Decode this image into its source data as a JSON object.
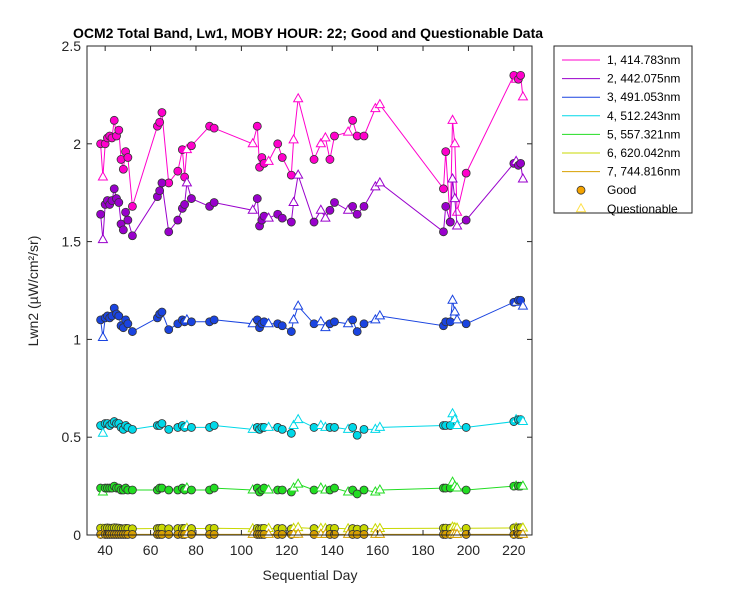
{
  "chart_data": {
    "type": "line",
    "title": "OCM2 Total Band, Lw1, MOBY HOUR: 22;  Good and Questionable Data",
    "xlabel": "Sequential Day",
    "ylabel": "Lwn2 (µW/cm²/sr)",
    "xlim": [
      32,
      228
    ],
    "ylim": [
      0,
      2.5
    ],
    "xticks": [
      40,
      60,
      80,
      100,
      120,
      140,
      160,
      180,
      200,
      220
    ],
    "xtick_labels": [
      "40",
      "60",
      "80",
      "100",
      "120",
      "140",
      "160",
      "180",
      "200",
      "220"
    ],
    "yticks": [
      0,
      0.5,
      1,
      1.5,
      2,
      2.5
    ],
    "ytick_labels": [
      "0",
      "0.5",
      "1",
      "1.5",
      "2",
      "2.5"
    ],
    "grid": false,
    "legend_position": "outside-top-right",
    "x": [
      38,
      39,
      40,
      41,
      42,
      43,
      44,
      45,
      46,
      47,
      48,
      49,
      50,
      52,
      63,
      64,
      65,
      68,
      72,
      74,
      75,
      76,
      78,
      86,
      88,
      105,
      107,
      108,
      109,
      110,
      112,
      116,
      118,
      122,
      123,
      125,
      132,
      135,
      137,
      139,
      141,
      147,
      149,
      151,
      154,
      159,
      161,
      189,
      190,
      192,
      193,
      194,
      195,
      199,
      220,
      221,
      222,
      223,
      224
    ],
    "quality": [
      "G",
      "Q",
      "G",
      "G",
      "G",
      "G",
      "G",
      "G",
      "G",
      "G",
      "G",
      "G",
      "G",
      "G",
      "G",
      "G",
      "G",
      "G",
      "G",
      "G",
      "G",
      "Q",
      "G",
      "G",
      "G",
      "Q",
      "G",
      "G",
      "G",
      "G",
      "Q",
      "G",
      "G",
      "G",
      "Q",
      "Q",
      "G",
      "Q",
      "Q",
      "G",
      "G",
      "Q",
      "G",
      "G",
      "G",
      "Q",
      "Q",
      "G",
      "G",
      "G",
      "Q",
      "Q",
      "Q",
      "G",
      "G",
      "Q",
      "G",
      "G",
      "Q"
    ],
    "series": [
      {
        "name": "1, 414.783nm",
        "color": "#ff00cc",
        "values": [
          2.0,
          1.83,
          2.0,
          2.03,
          2.04,
          2.03,
          2.12,
          2.04,
          2.07,
          1.92,
          1.87,
          1.96,
          1.93,
          1.68,
          2.09,
          2.11,
          2.16,
          1.8,
          1.86,
          1.97,
          1.83,
          1.97,
          1.99,
          2.09,
          2.08,
          2.0,
          2.09,
          1.88,
          1.93,
          1.9,
          1.91,
          2.0,
          1.93,
          1.84,
          2.02,
          2.23,
          1.92,
          2.0,
          2.03,
          1.92,
          2.04,
          2.06,
          2.12,
          2.04,
          2.04,
          2.18,
          2.2,
          1.77,
          1.96,
          1.6,
          2.12,
          2.0,
          1.65,
          1.85,
          2.35,
          2.33,
          2.33,
          2.35,
          2.24
        ]
      },
      {
        "name": "2, 442.075nm",
        "color": "#9900cc",
        "values": [
          1.64,
          1.51,
          1.69,
          1.71,
          1.69,
          1.71,
          1.77,
          1.72,
          1.7,
          1.59,
          1.56,
          1.65,
          1.61,
          1.53,
          1.73,
          1.76,
          1.8,
          1.55,
          1.61,
          1.67,
          1.69,
          1.8,
          1.72,
          1.68,
          1.7,
          1.66,
          1.72,
          1.58,
          1.61,
          1.63,
          1.62,
          1.64,
          1.62,
          1.6,
          1.7,
          1.84,
          1.6,
          1.66,
          1.62,
          1.66,
          1.7,
          1.66,
          1.68,
          1.64,
          1.68,
          1.78,
          1.8,
          1.55,
          1.68,
          1.6,
          1.82,
          1.72,
          1.58,
          1.61,
          1.9,
          1.91,
          1.89,
          1.9,
          1.82
        ]
      },
      {
        "name": "3, 491.053nm",
        "color": "#1a44e0",
        "values": [
          1.1,
          1.01,
          1.11,
          1.12,
          1.11,
          1.12,
          1.16,
          1.13,
          1.12,
          1.07,
          1.06,
          1.1,
          1.08,
          1.04,
          1.11,
          1.13,
          1.14,
          1.05,
          1.08,
          1.1,
          1.09,
          1.1,
          1.09,
          1.09,
          1.1,
          1.08,
          1.1,
          1.06,
          1.08,
          1.09,
          1.08,
          1.08,
          1.07,
          1.04,
          1.1,
          1.17,
          1.08,
          1.09,
          1.06,
          1.08,
          1.09,
          1.08,
          1.1,
          1.04,
          1.08,
          1.1,
          1.12,
          1.07,
          1.09,
          1.09,
          1.2,
          1.14,
          1.1,
          1.08,
          1.19,
          1.19,
          1.2,
          1.2,
          1.17
        ]
      },
      {
        "name": "4, 512.243nm",
        "color": "#00d8e8",
        "values": [
          0.56,
          0.52,
          0.57,
          0.57,
          0.56,
          0.57,
          0.58,
          0.57,
          0.57,
          0.55,
          0.54,
          0.56,
          0.55,
          0.54,
          0.56,
          0.56,
          0.57,
          0.54,
          0.55,
          0.56,
          0.55,
          0.56,
          0.55,
          0.55,
          0.56,
          0.54,
          0.55,
          0.54,
          0.55,
          0.55,
          0.55,
          0.55,
          0.54,
          0.52,
          0.56,
          0.59,
          0.55,
          0.56,
          0.55,
          0.55,
          0.55,
          0.54,
          0.55,
          0.51,
          0.54,
          0.54,
          0.55,
          0.56,
          0.56,
          0.56,
          0.62,
          0.59,
          0.56,
          0.55,
          0.58,
          0.59,
          0.59,
          0.59,
          0.58
        ]
      },
      {
        "name": "5, 557.321nm",
        "color": "#22dd22",
        "values": [
          0.24,
          0.22,
          0.24,
          0.24,
          0.24,
          0.24,
          0.25,
          0.24,
          0.24,
          0.23,
          0.23,
          0.24,
          0.23,
          0.23,
          0.23,
          0.24,
          0.24,
          0.23,
          0.23,
          0.24,
          0.23,
          0.24,
          0.23,
          0.23,
          0.24,
          0.23,
          0.24,
          0.22,
          0.23,
          0.24,
          0.23,
          0.23,
          0.23,
          0.22,
          0.24,
          0.26,
          0.23,
          0.24,
          0.23,
          0.23,
          0.24,
          0.22,
          0.23,
          0.21,
          0.23,
          0.22,
          0.23,
          0.24,
          0.24,
          0.24,
          0.27,
          0.25,
          0.24,
          0.23,
          0.25,
          0.25,
          0.25,
          0.25,
          0.25
        ]
      },
      {
        "name": "6, 620.042nm",
        "color": "#c8d800",
        "values": [
          0.035,
          0.03,
          0.035,
          0.036,
          0.035,
          0.035,
          0.037,
          0.036,
          0.035,
          0.033,
          0.032,
          0.034,
          0.033,
          0.032,
          0.033,
          0.034,
          0.035,
          0.032,
          0.033,
          0.034,
          0.033,
          0.034,
          0.033,
          0.033,
          0.034,
          0.032,
          0.034,
          0.031,
          0.033,
          0.034,
          0.033,
          0.033,
          0.033,
          0.031,
          0.034,
          0.038,
          0.033,
          0.034,
          0.033,
          0.033,
          0.034,
          0.032,
          0.033,
          0.03,
          0.033,
          0.032,
          0.033,
          0.035,
          0.035,
          0.035,
          0.04,
          0.037,
          0.035,
          0.034,
          0.036,
          0.037,
          0.037,
          0.037,
          0.036
        ]
      },
      {
        "name": "7, 744.816nm",
        "color": "#d8a000",
        "values": [
          0.003,
          0.002,
          0.003,
          0.003,
          0.003,
          0.003,
          0.003,
          0.003,
          0.003,
          0.003,
          0.003,
          0.003,
          0.003,
          0.003,
          0.003,
          0.003,
          0.003,
          0.003,
          0.003,
          0.003,
          0.003,
          0.003,
          0.003,
          0.003,
          0.003,
          0.003,
          0.003,
          0.003,
          0.003,
          0.003,
          0.003,
          0.003,
          0.003,
          0.003,
          0.003,
          0.004,
          0.003,
          0.003,
          0.003,
          0.003,
          0.003,
          0.003,
          0.003,
          0.003,
          0.003,
          0.003,
          0.003,
          0.003,
          0.003,
          0.003,
          0.004,
          0.003,
          0.003,
          0.003,
          0.003,
          0.003,
          0.003,
          0.003,
          0.003
        ]
      }
    ],
    "legend": {
      "good_label": "Good",
      "questionable_label": "Questionable",
      "good_marker_color": "#f4a300",
      "questionable_marker_color": "#ffe14a"
    }
  }
}
